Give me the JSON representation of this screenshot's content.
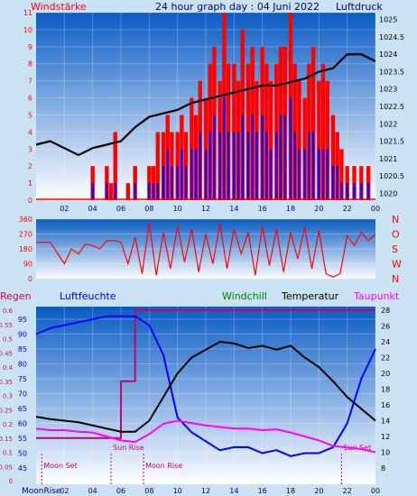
{
  "header": {
    "left_label": "Windstärke",
    "title": "24 hour graph day : 04 Juni 2022",
    "right_label": "Luftdruck"
  },
  "colors": {
    "wind": "#ff0000",
    "gust_gap": "#0000ff",
    "pressure": "#000000",
    "humidity": "#0000ff",
    "temperature": "#000000",
    "dewpoint": "#ff00ff",
    "rain": "#cc0066",
    "windchill": "#008000",
    "panel_top": "#0a5cc4",
    "panel_bottom": "#ffffff",
    "page_bg": "#c9e3f2"
  },
  "chart_data": [
    {
      "type": "bar",
      "name_hint": "wind",
      "x_ticks": [
        "02",
        "04",
        "06",
        "08",
        "10",
        "12",
        "14",
        "16",
        "18",
        "20",
        "22",
        "00"
      ],
      "y_left_ticks": [
        "0",
        "1",
        "2",
        "3",
        "4",
        "5",
        "6",
        "7",
        "8",
        "9",
        "10",
        "11"
      ],
      "y_right_ticks": [
        "1020",
        "1020.5",
        "1021",
        "1021.5",
        "1022",
        "1022.5",
        "1023",
        "1023.5",
        "1024",
        "1024.5",
        "1025"
      ],
      "ylim_left": [
        0,
        11
      ],
      "ylim_right": [
        1019.8,
        1025.2
      ],
      "wind_hours": [
        4.0,
        5.0,
        5.3,
        5.6,
        6.0,
        6.5,
        7.0,
        7.5,
        8.0,
        8.3,
        8.6,
        9.0,
        9.3,
        9.6,
        10.0,
        10.3,
        10.6,
        11.0,
        11.3,
        11.6,
        12.0,
        12.3,
        12.6,
        13.0,
        13.3,
        13.6,
        14.0,
        14.3,
        14.6,
        15.0,
        15.3,
        15.6,
        16.0,
        16.3,
        16.6,
        17.0,
        17.3,
        17.6,
        18.0,
        18.3,
        18.6,
        19.0,
        19.3,
        19.6,
        20.0,
        20.3,
        20.6,
        21.0,
        21.3,
        21.6,
        22.0,
        22.5,
        23.0,
        23.5
      ],
      "wind_gust": [
        2,
        2,
        1,
        4,
        0,
        1,
        2,
        0,
        2,
        2,
        4,
        4,
        5,
        4,
        4,
        5,
        4,
        6,
        5,
        7,
        6,
        8,
        9,
        7,
        11,
        8,
        8,
        7,
        10,
        8,
        9,
        7,
        9,
        8,
        7,
        8,
        9,
        9,
        11,
        8,
        7,
        6,
        8,
        9,
        7,
        8,
        7,
        5,
        4,
        3,
        2,
        2,
        2,
        2
      ],
      "wind_mean": [
        1,
        1,
        0,
        1,
        0,
        0,
        1,
        0,
        1,
        1,
        1,
        2,
        3,
        2,
        2,
        3,
        2,
        3,
        3,
        4,
        3,
        4,
        5,
        4,
        6,
        4,
        4,
        4,
        5,
        4,
        5,
        4,
        5,
        4,
        3,
        4,
        5,
        5,
        6,
        4,
        3,
        3,
        4,
        4,
        3,
        3,
        3,
        2,
        2,
        1,
        1,
        1,
        1,
        1
      ],
      "pressure_hours": [
        0,
        1,
        2,
        3,
        4,
        5,
        6,
        7,
        8,
        9,
        10,
        11,
        12,
        13,
        14,
        15,
        16,
        17,
        18,
        19,
        20,
        21,
        22,
        23,
        24
      ],
      "pressure_hpa": [
        1021.4,
        1021.5,
        1021.3,
        1021.1,
        1021.3,
        1021.4,
        1021.5,
        1021.9,
        1022.2,
        1022.3,
        1022.4,
        1022.6,
        1022.7,
        1022.8,
        1022.9,
        1023.0,
        1023.1,
        1023.1,
        1023.2,
        1023.3,
        1023.5,
        1023.6,
        1024.0,
        1024.0,
        1023.8
      ]
    },
    {
      "type": "line",
      "name_hint": "wind direction",
      "y_left_ticks": [
        "0",
        "90",
        "180",
        "270",
        "360"
      ],
      "y_right_labels": [
        "N",
        "W",
        "S",
        "O",
        "N"
      ],
      "ylim": [
        0,
        360
      ],
      "hours": [
        0,
        1,
        2,
        2.5,
        3,
        3.5,
        4,
        4.5,
        5,
        5.5,
        6,
        6.5,
        7,
        7.5,
        8,
        8.5,
        9,
        9.5,
        10,
        10.5,
        11,
        11.5,
        12,
        12.5,
        13,
        13.5,
        14,
        14.5,
        15,
        15.5,
        16,
        16.5,
        17,
        17.5,
        18,
        18.5,
        19,
        19.5,
        20,
        20.5,
        21,
        21.5,
        22,
        22.5,
        23,
        23.5,
        24
      ],
      "direction_deg": [
        220,
        220,
        90,
        180,
        150,
        210,
        200,
        180,
        230,
        230,
        220,
        90,
        250,
        30,
        340,
        20,
        280,
        60,
        320,
        100,
        300,
        40,
        270,
        90,
        330,
        60,
        300,
        150,
        280,
        20,
        320,
        80,
        300,
        40,
        280,
        120,
        310,
        60,
        290,
        30,
        10,
        30,
        260,
        200,
        280,
        230,
        270
      ]
    },
    {
      "type": "line",
      "name_hint": "temperature humidity",
      "legend": [
        "Regen",
        "Luftfeuchte",
        "Windchill",
        "Temperatur",
        "Taupunkt"
      ],
      "y_rain_ticks": [
        "0",
        "0.05",
        "0.1",
        "0.15",
        "0.2",
        "0.25",
        "0.3",
        "0.35",
        "0.4",
        "0.45",
        "0.5",
        "0.55",
        "0.6"
      ],
      "y_hum_ticks": [
        "45",
        "50",
        "55",
        "60",
        "65",
        "70",
        "75",
        "80",
        "85",
        "90",
        "95"
      ],
      "y_temp_ticks": [
        "8",
        "10",
        "12",
        "14",
        "16",
        "18",
        "20",
        "22",
        "24",
        "26",
        "28"
      ],
      "x_ticks": [
        "02",
        "04",
        "06",
        "08",
        "10",
        "12",
        "14",
        "16",
        "18",
        "20",
        "22",
        "00"
      ],
      "hours": [
        0,
        1,
        2,
        3,
        4,
        5,
        6,
        7,
        8,
        9,
        10,
        11,
        12,
        13,
        14,
        15,
        16,
        17,
        18,
        19,
        20,
        21,
        22,
        23,
        24
      ],
      "humidity": [
        90,
        92,
        93,
        94,
        95,
        96,
        96,
        96,
        93,
        83,
        62,
        57,
        54,
        51,
        52,
        52,
        50,
        51,
        49,
        50,
        50,
        52,
        60,
        75,
        85
      ],
      "temperature": [
        14.5,
        14.2,
        14.0,
        13.8,
        13.4,
        13.0,
        12.6,
        12.6,
        14.0,
        17.0,
        20.0,
        22.0,
        23.0,
        24.0,
        23.8,
        23.2,
        23.5,
        23.0,
        23.5,
        22.0,
        20.8,
        19.0,
        17.0,
        15.5,
        14.0
      ],
      "dewpoint": [
        13.0,
        12.8,
        12.8,
        12.6,
        12.5,
        12.0,
        11.5,
        11.3,
        12.3,
        13.6,
        14.0,
        13.7,
        13.4,
        13.2,
        13.0,
        13.0,
        12.8,
        12.9,
        12.5,
        12.0,
        11.5,
        10.8,
        10.6,
        10.4,
        10.0
      ],
      "rain": [
        0.15,
        0.15,
        0.15,
        0.15,
        0.15,
        0.15,
        0.35,
        0.6,
        0.6,
        0.6,
        0.6,
        0.6,
        0.6,
        0.6,
        0.6,
        0.6,
        0.6,
        0.6,
        0.6,
        0.6,
        0.6,
        0.6,
        0.6,
        0.6,
        0.6
      ],
      "events": [
        {
          "label": "Moon Set",
          "hour": 0.4
        },
        {
          "label": "Sun Rise",
          "hour": 5.3
        },
        {
          "label": "Moon Rise",
          "hour": 7.6
        },
        {
          "label": "Sun Set",
          "hour": 21.6
        }
      ],
      "bottom_label": "MoonRise"
    }
  ]
}
